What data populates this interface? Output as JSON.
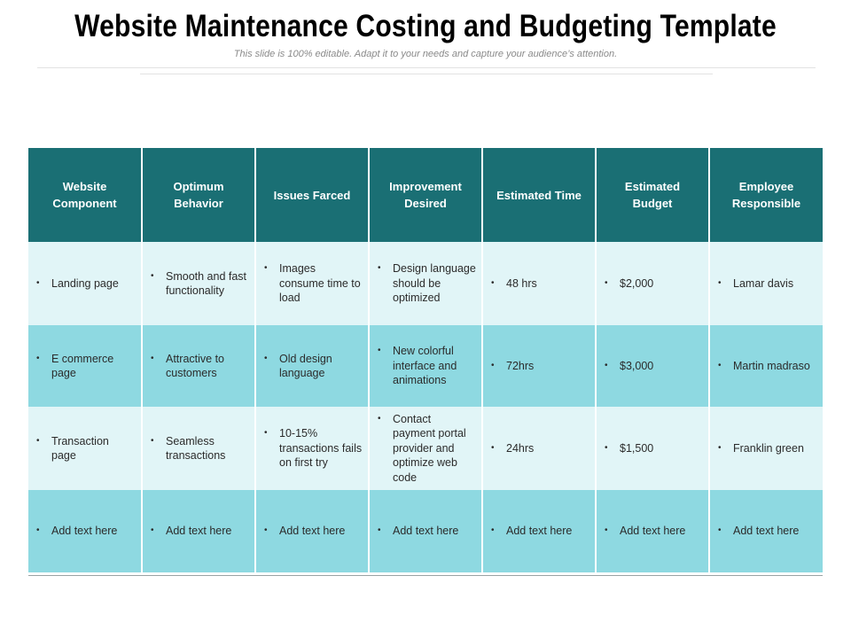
{
  "title": "Website Maintenance Costing and Budgeting Template",
  "subtitle": "This slide is 100% editable. Adapt it to your needs and capture your audience’s attention.",
  "table": {
    "headers": [
      "Website Component",
      "Optimum Behavior",
      "Issues Farced",
      "Improvement Desired",
      "Estimated Time",
      "Estimated Budget",
      "Employee Responsible"
    ],
    "rows": [
      [
        "Landing page",
        "Smooth and fast functionality",
        "Images consume time to load",
        "Design language should be optimized",
        "48 hrs",
        "$2,000",
        "Lamar davis"
      ],
      [
        "E commerce page",
        "Attractive to customers",
        "Old design language",
        "New colorful interface and animations",
        "72hrs",
        "$3,000",
        "Martin madraso"
      ],
      [
        "Transaction page",
        "Seamless transactions",
        "10-15% transactions fails on first try",
        "Contact payment portal provider and optimize web code",
        "24hrs",
        "$1,500",
        "Franklin green"
      ],
      [
        "Add text here",
        "Add text here",
        "Add text here",
        "Add text here",
        "Add text here",
        "Add text here",
        "Add text here"
      ]
    ],
    "bullet": "•"
  },
  "colors": {
    "header_bg": "#1a6f74",
    "row_light": "#e1f5f7",
    "row_dark": "#8ed9e1"
  }
}
